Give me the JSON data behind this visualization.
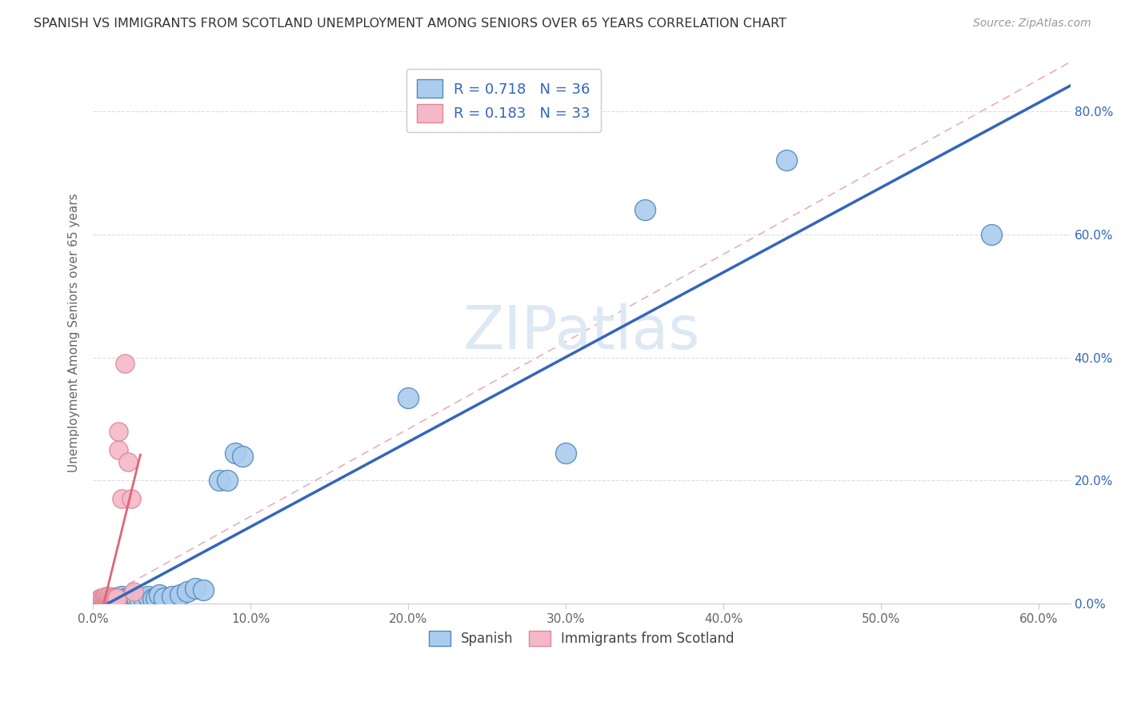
{
  "title": "SPANISH VS IMMIGRANTS FROM SCOTLAND UNEMPLOYMENT AMONG SENIORS OVER 65 YEARS CORRELATION CHART",
  "source": "Source: ZipAtlas.com",
  "ylabel": "Unemployment Among Seniors over 65 years",
  "xlim": [
    0.0,
    0.62
  ],
  "ylim": [
    0.0,
    0.88
  ],
  "R_spanish": 0.718,
  "N_spanish": 36,
  "R_scotland": 0.183,
  "N_scotland": 33,
  "watermark": "ZIPatlas",
  "spanish_color": "#aaccee",
  "scotland_color": "#f5b8c8",
  "spanish_edge_color": "#5588bb",
  "scotland_edge_color": "#dd8899",
  "spanish_line_color": "#3366bb",
  "scotland_line_color": "#dd6677",
  "dashed_line_color": "#ccbbbb",
  "spanish_x": [
    0.005,
    0.008,
    0.01,
    0.012,
    0.013,
    0.015,
    0.015,
    0.017,
    0.018,
    0.02,
    0.022,
    0.022,
    0.025,
    0.025,
    0.028,
    0.03,
    0.032,
    0.035,
    0.038,
    0.04,
    0.042,
    0.045,
    0.05,
    0.055,
    0.06,
    0.065,
    0.07,
    0.08,
    0.085,
    0.09,
    0.095,
    0.2,
    0.3,
    0.35,
    0.44,
    0.57
  ],
  "spanish_y": [
    0.005,
    0.008,
    0.005,
    0.01,
    0.005,
    0.005,
    0.01,
    0.008,
    0.012,
    0.008,
    0.005,
    0.01,
    0.008,
    0.015,
    0.01,
    0.005,
    0.01,
    0.012,
    0.008,
    0.01,
    0.015,
    0.01,
    0.012,
    0.015,
    0.02,
    0.025,
    0.023,
    0.2,
    0.2,
    0.245,
    0.24,
    0.335,
    0.245,
    0.64,
    0.72,
    0.6
  ],
  "scotland_x": [
    0.003,
    0.004,
    0.005,
    0.005,
    0.006,
    0.006,
    0.007,
    0.007,
    0.008,
    0.008,
    0.008,
    0.009,
    0.009,
    0.01,
    0.01,
    0.01,
    0.011,
    0.011,
    0.012,
    0.012,
    0.013,
    0.013,
    0.014,
    0.014,
    0.015,
    0.015,
    0.016,
    0.016,
    0.018,
    0.02,
    0.022,
    0.024,
    0.026
  ],
  "scotland_y": [
    0.005,
    0.008,
    0.005,
    0.01,
    0.005,
    0.008,
    0.005,
    0.01,
    0.005,
    0.008,
    0.012,
    0.005,
    0.01,
    0.005,
    0.008,
    0.012,
    0.005,
    0.01,
    0.005,
    0.008,
    0.005,
    0.01,
    0.005,
    0.008,
    0.005,
    0.01,
    0.25,
    0.28,
    0.17,
    0.39,
    0.23,
    0.17,
    0.02
  ]
}
